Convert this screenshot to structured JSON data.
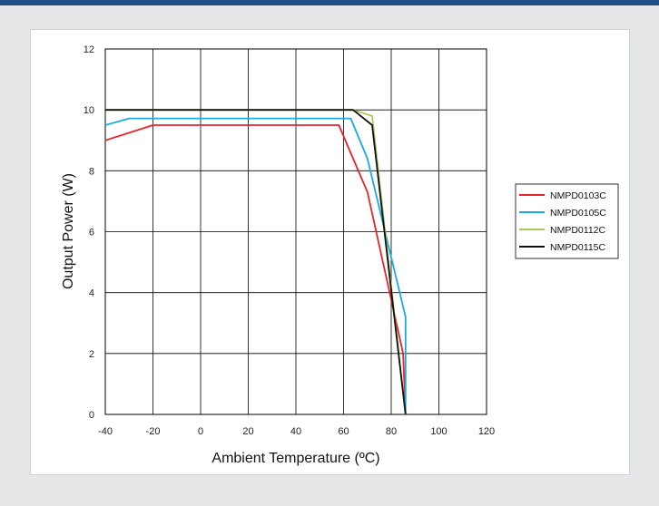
{
  "chart_data": {
    "type": "line",
    "title": "",
    "xlabel": "Ambient Temperature (ºC)",
    "ylabel": "Output Power (W)",
    "xlim": [
      -40,
      120
    ],
    "ylim": [
      0,
      12
    ],
    "xticks": [
      -40,
      -20,
      0,
      20,
      40,
      60,
      80,
      100,
      120
    ],
    "yticks": [
      0,
      2,
      4,
      6,
      8,
      10,
      12
    ],
    "grid": true,
    "legend_position": "right",
    "series": [
      {
        "name": "NMPD0103C",
        "color": "#e8232a",
        "points": [
          [
            -40,
            9.0
          ],
          [
            -20,
            9.5
          ],
          [
            58,
            9.5
          ],
          [
            70,
            7.3
          ],
          [
            85,
            2.0
          ],
          [
            86,
            0
          ]
        ]
      },
      {
        "name": "NMPD0105C",
        "color": "#1aa9e3",
        "points": [
          [
            -40,
            9.5
          ],
          [
            -30,
            9.72
          ],
          [
            63,
            9.72
          ],
          [
            70,
            8.4
          ],
          [
            86,
            3.2
          ],
          [
            86,
            0
          ]
        ]
      },
      {
        "name": "NMPD0112C",
        "color": "#a9c95a",
        "points": [
          [
            -40,
            10.0
          ],
          [
            64,
            10.0
          ],
          [
            72,
            9.8
          ],
          [
            86,
            0
          ]
        ]
      },
      {
        "name": "NMPD0115C",
        "color": "#111111",
        "points": [
          [
            -40,
            10.0
          ],
          [
            64,
            10.0
          ],
          [
            72,
            9.5
          ],
          [
            86,
            0
          ]
        ]
      }
    ]
  }
}
